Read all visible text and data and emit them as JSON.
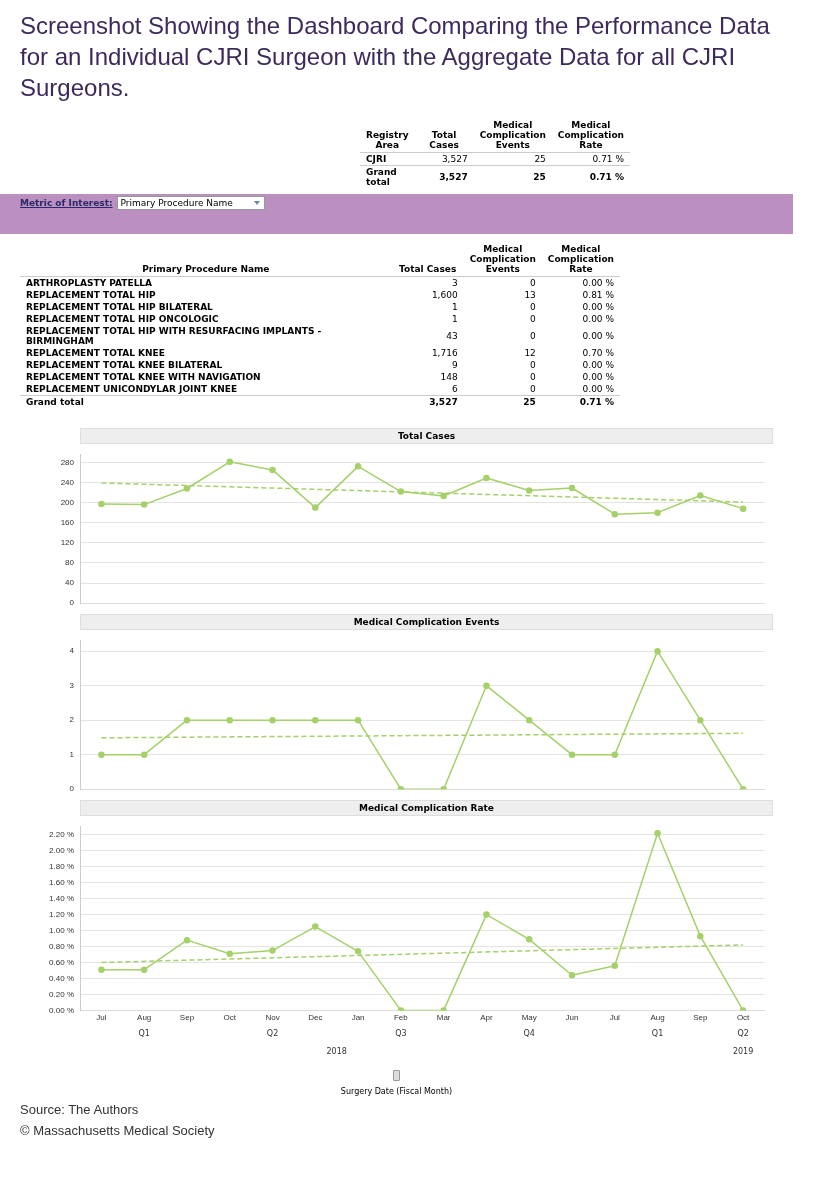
{
  "chart_data": [
    {
      "type": "other",
      "title": "Screenshot Showing the Dashboard Comparing the Performance Data for an Individual CJRI Surgeon with the Aggregate Data for all CJRI Surgeons.",
      "ylabel": "Registry Area",
      "categories": [
        "Total Cases",
        "Medical Complication Events",
        "Medical Complication Rate"
      ],
      "y_categories": [
        "CJRI",
        "Grand total"
      ],
      "cell_labels": [
        [
          "3,527",
          "25",
          "0.71 %"
        ],
        [
          "3,527",
          "25",
          "0.71 %"
        ]
      ]
    },
    {
      "type": "other",
      "annotations": [
        "Metric of Interest:",
        "Primary Procedure Name"
      ],
      "ylabel": "Primary Procedure Name",
      "categories": [
        "Total Cases",
        "Medical Complication Events",
        "Medical Complication Rate"
      ],
      "y_categories": [
        "ARTHROPLASTY PATELLA",
        "REPLACEMENT TOTAL HIP",
        "REPLACEMENT TOTAL HIP BILATERAL",
        "REPLACEMENT TOTAL HIP ONCOLOGIC",
        "REPLACEMENT TOTAL HIP WITH  RESURFACING IMPLANTS - BIRMINGHAM",
        "REPLACEMENT TOTAL KNEE",
        "REPLACEMENT TOTAL KNEE BILATERAL",
        "REPLACEMENT TOTAL KNEE WITH NAVIGATION",
        "REPLACEMENT UNICONDYLAR JOINT KNEE",
        "Grand total"
      ],
      "cell_labels": [
        [
          "3",
          "0",
          "0.00 %"
        ],
        [
          "1,600",
          "13",
          "0.81 %"
        ],
        [
          "1",
          "0",
          "0.00 %"
        ],
        [
          "1",
          "0",
          "0.00 %"
        ],
        [
          "43",
          "0",
          "0.00 %"
        ],
        [
          "1,716",
          "12",
          "0.70 %"
        ],
        [
          "9",
          "0",
          "0.00 %"
        ],
        [
          "148",
          "0",
          "0.00 %"
        ],
        [
          "6",
          "0",
          "0.00 %"
        ],
        [
          "3,527",
          "25",
          "0.71 %"
        ]
      ]
    },
    {
      "type": "line",
      "title": "Total Cases",
      "categories": [
        null,
        null,
        null,
        null,
        null,
        null,
        null,
        null,
        null,
        null,
        null,
        null,
        null,
        null,
        null,
        null
      ],
      "tick_labels": "y",
      "grid": "y",
      "marker": "circle",
      "legend": false,
      "ylim": [
        0,
        295
      ],
      "yticks": [
        0,
        40,
        80,
        120,
        160,
        200,
        240,
        280
      ],
      "series": [
        {
          "color": "#a5d06a",
          "values": [
            197,
            196,
            228,
            281,
            265,
            190,
            272,
            222,
            213,
            249,
            224,
            229,
            177,
            180,
            214,
            188
          ]
        },
        {
          "color": "#a5d06a",
          "type": "line",
          "line_style": "dashed",
          "marker": "none",
          "values": [
            239,
            null,
            null,
            null,
            null,
            null,
            null,
            null,
            null,
            null,
            null,
            null,
            null,
            null,
            null,
            201
          ]
        }
      ]
    },
    {
      "type": "line",
      "title": "Medical Complication Events",
      "categories": [
        null,
        null,
        null,
        null,
        null,
        null,
        null,
        null,
        null,
        null,
        null,
        null,
        null,
        null,
        null,
        null
      ],
      "tick_labels": "y",
      "grid": "y",
      "marker": "circle",
      "legend": false,
      "ylim": [
        0,
        4.3
      ],
      "yticks": [
        0,
        1,
        2,
        3,
        4
      ],
      "series": [
        {
          "color": "#a5d06a",
          "values": [
            1,
            1,
            2,
            2,
            2,
            2,
            2,
            0,
            0,
            3,
            2,
            1,
            1,
            4,
            2,
            0
          ]
        },
        {
          "color": "#a5d06a",
          "type": "line",
          "line_style": "dashed",
          "marker": "none",
          "values": [
            1.49,
            null,
            null,
            null,
            null,
            null,
            null,
            null,
            null,
            null,
            null,
            null,
            null,
            null,
            null,
            1.62
          ]
        }
      ]
    },
    {
      "type": "line",
      "title": "Medical Complication Rate",
      "xlabel": "Surgery Date (Fiscal Month)",
      "categories": [
        "Jul",
        "Aug",
        "Sep",
        "Oct",
        "Nov",
        "Dec",
        "Jan",
        "Feb",
        "Mar",
        "Apr",
        "May",
        "Jun",
        "Jul",
        "Aug",
        "Sep",
        "Oct"
      ],
      "grid": "y",
      "marker": "circle",
      "legend": false,
      "ylim": [
        0,
        2.3
      ],
      "yticks": [
        {
          "value": 0,
          "label": "0.00 %"
        },
        {
          "value": 0.2,
          "label": "0.20 %"
        },
        {
          "value": 0.4,
          "label": "0.40 %"
        },
        {
          "value": 0.6,
          "label": "0.60 %"
        },
        {
          "value": 0.8,
          "label": "0.80 %"
        },
        {
          "value": 1,
          "label": "1.00 %"
        },
        {
          "value": 1.2,
          "label": "1.20 %"
        },
        {
          "value": 1.4,
          "label": "1.40 %"
        },
        {
          "value": 1.6,
          "label": "1.60 %"
        },
        {
          "value": 1.8,
          "label": "1.80 %"
        },
        {
          "value": 2,
          "label": "2.00 %"
        },
        {
          "value": 2.2,
          "label": "2.20 %"
        }
      ],
      "series": [
        {
          "color": "#a5d06a",
          "values": [
            0.51,
            0.51,
            0.88,
            0.71,
            0.75,
            1.05,
            0.74,
            0,
            0,
            1.2,
            0.89,
            0.44,
            0.56,
            2.22,
            0.93,
            0
          ]
        },
        {
          "color": "#a5d06a",
          "type": "line",
          "line_style": "dashed",
          "marker": "none",
          "values": [
            0.6,
            null,
            null,
            null,
            null,
            null,
            null,
            null,
            null,
            null,
            null,
            null,
            null,
            null,
            null,
            0.82
          ]
        }
      ],
      "annotations": [
        "Q1",
        "Q2",
        "Q3",
        "Q4",
        "Q1",
        "Q2",
        "2018",
        "2019",
        "Source: The Authors",
        "© Massachusetts Medical Society"
      ]
    }
  ]
}
